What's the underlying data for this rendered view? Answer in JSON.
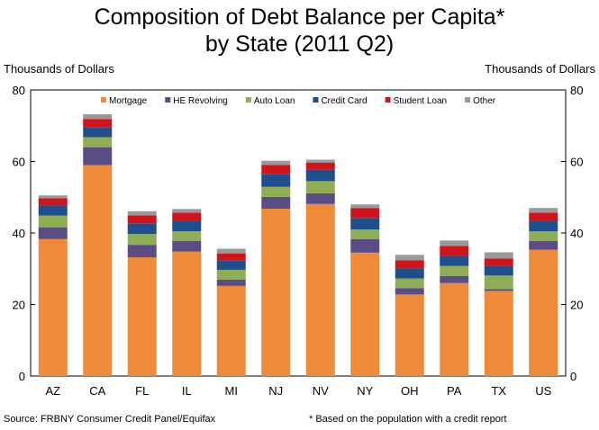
{
  "title_line1": "Composition of Debt Balance per Capita*",
  "title_line2": "by State (2011 Q2)",
  "left_axis_unit": "Thousands of Dollars",
  "right_axis_unit": "Thousands of Dollars",
  "source": "Source: FRBNY  Consumer Credit Panel/Equifax",
  "footnote": "* Based on the population  with a credit report",
  "chart_data": {
    "type": "bar",
    "stacked": true,
    "title": "Composition of Debt Balance per Capita* by State (2011 Q2)",
    "xlabel": "",
    "ylabel": "Thousands of Dollars",
    "ylim": [
      0,
      80
    ],
    "yticks": [
      0,
      20,
      40,
      60,
      80
    ],
    "legend_position": "top",
    "categories": [
      "AZ",
      "CA",
      "FL",
      "IL",
      "MI",
      "NJ",
      "NV",
      "NY",
      "OH",
      "PA",
      "TX",
      "US"
    ],
    "series": [
      {
        "name": "Mortgage",
        "color": "#EE8A3A",
        "values": [
          38.3,
          59.0,
          33.2,
          34.8,
          25.2,
          46.8,
          48.1,
          34.5,
          22.8,
          26.0,
          23.8,
          35.3
        ]
      },
      {
        "name": "HE Revolving",
        "color": "#5A4C85",
        "values": [
          3.3,
          5.0,
          3.5,
          3.0,
          1.8,
          3.3,
          3.0,
          3.8,
          1.8,
          2.0,
          0.5,
          2.5
        ]
      },
      {
        "name": "Auto Loan",
        "color": "#8FAD52",
        "values": [
          3.3,
          2.8,
          3.0,
          2.7,
          2.7,
          2.8,
          3.4,
          2.7,
          2.7,
          2.8,
          3.8,
          2.7
        ]
      },
      {
        "name": "Credit Card",
        "color": "#1F4E8C",
        "values": [
          2.8,
          2.8,
          3.0,
          3.0,
          2.7,
          3.5,
          3.2,
          3.2,
          2.8,
          2.8,
          2.8,
          3.0
        ]
      },
      {
        "name": "Student Loan",
        "color": "#D0141A",
        "values": [
          2.0,
          2.3,
          2.2,
          2.2,
          1.9,
          2.6,
          2.0,
          2.8,
          2.3,
          2.8,
          2.0,
          2.2
        ]
      },
      {
        "name": "Other",
        "color": "#999999",
        "values": [
          0.8,
          1.3,
          1.2,
          1.0,
          1.3,
          1.2,
          0.8,
          1.0,
          1.5,
          1.5,
          1.7,
          1.3
        ]
      }
    ]
  }
}
